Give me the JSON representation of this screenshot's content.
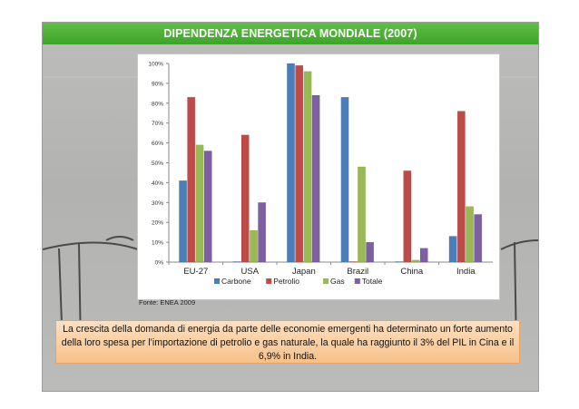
{
  "slide": {
    "title": "DIPENDENZA ENERGETICA MONDIALE (2007)",
    "source": "Fonte: ENEA 2009",
    "caption": "La crescita della domanda di energia da parte delle economie emergenti ha determinato un forte aumento della loro spesa per l’importazione di petrolio e gas naturale, la quale ha raggiunto il 3% del PIL in Cina e il 6,9% in India.",
    "colors": {
      "title_bar": "#4cae35",
      "caption_bg": "#f9cfa3"
    }
  },
  "chart_data": {
    "type": "bar",
    "title": "",
    "xlabel": "",
    "ylabel": "",
    "ylim": [
      0,
      100
    ],
    "yticks": [
      "0%",
      "10%",
      "20%",
      "30%",
      "40%",
      "50%",
      "60%",
      "70%",
      "80%",
      "90%",
      "100%"
    ],
    "grid": false,
    "legend_position": "bottom",
    "categories": [
      "EU-27",
      "USA",
      "Japan",
      "Brazil",
      "China",
      "India"
    ],
    "series": [
      {
        "name": "Carbone",
        "color": "#4a7ebb",
        "values": [
          41,
          0,
          100,
          83,
          0,
          13
        ]
      },
      {
        "name": "Petrolio",
        "color": "#be4b48",
        "values": [
          83,
          64,
          99,
          0,
          46,
          76
        ]
      },
      {
        "name": "Gas",
        "color": "#98b954",
        "values": [
          59,
          16,
          96,
          48,
          1,
          28
        ]
      },
      {
        "name": "Totale",
        "color": "#7d60a0",
        "values": [
          56,
          30,
          84,
          10,
          7,
          24
        ]
      }
    ]
  }
}
